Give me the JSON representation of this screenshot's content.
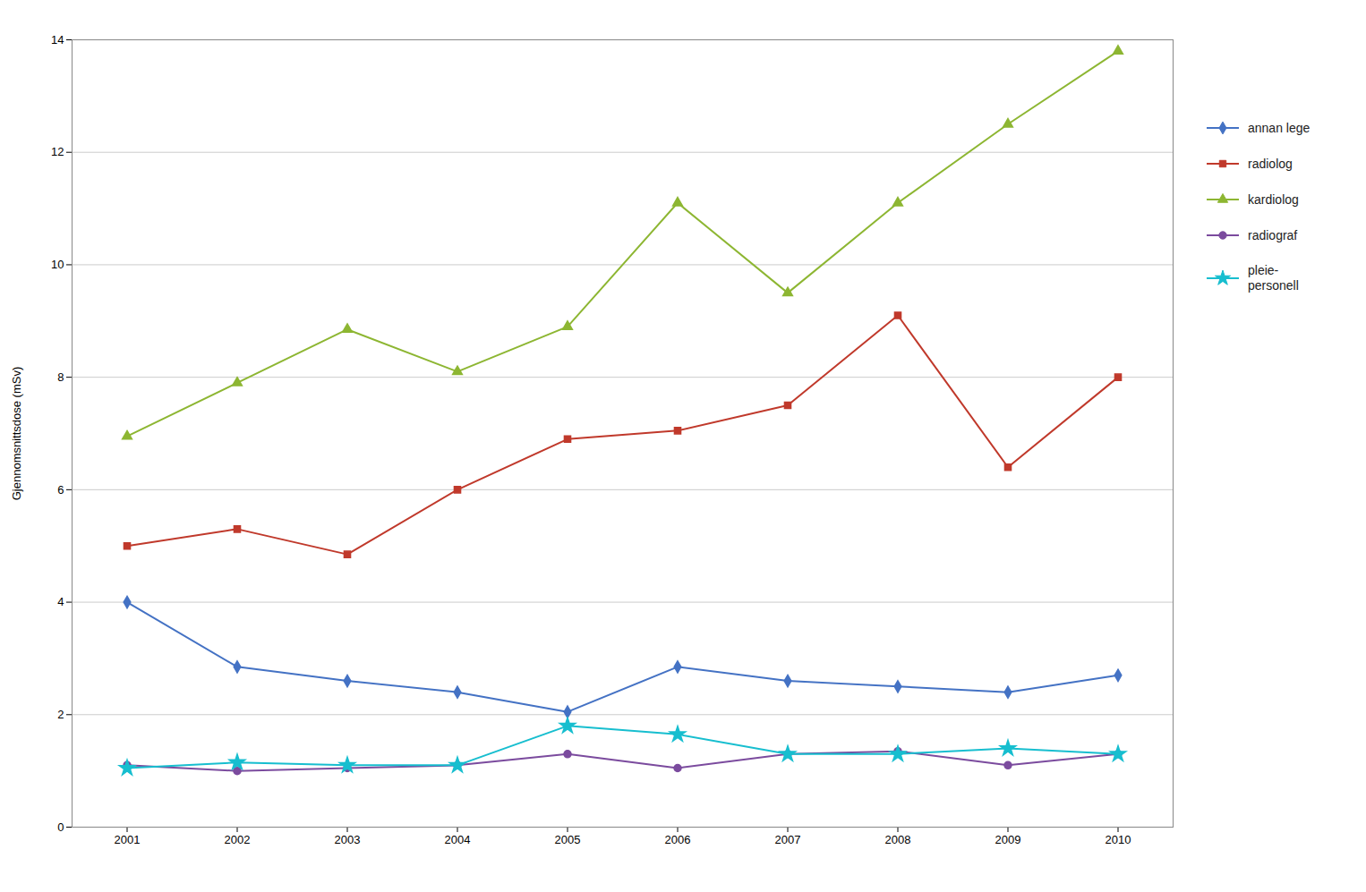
{
  "chart_data": {
    "type": "line",
    "x": [
      2001,
      2002,
      2003,
      2004,
      2005,
      2006,
      2007,
      2008,
      2009,
      2010
    ],
    "xlim": [
      2000.5,
      2010.5
    ],
    "xticks": [
      2001,
      2002,
      2003,
      2004,
      2005,
      2006,
      2007,
      2008,
      2009,
      2010
    ],
    "ylabel": "Gjennomsnittsdose (mSv)",
    "ylim": [
      0,
      14
    ],
    "yticks": [
      0,
      2,
      4,
      6,
      8,
      10,
      12,
      14
    ],
    "grid": true,
    "legend": "right",
    "series": [
      {
        "name": "annan lege",
        "color": "#4472C4",
        "marker": "diamond",
        "values": [
          4.0,
          2.85,
          2.6,
          2.4,
          2.05,
          2.85,
          2.6,
          2.5,
          2.4,
          2.7
        ]
      },
      {
        "name": "radiolog",
        "color": "#C0392B",
        "marker": "square",
        "values": [
          5.0,
          5.3,
          4.85,
          6.0,
          6.9,
          7.05,
          7.5,
          9.1,
          6.4,
          8.0
        ]
      },
      {
        "name": "kardiolog",
        "color": "#8DB632",
        "marker": "triangle",
        "values": [
          6.95,
          7.9,
          8.85,
          8.1,
          8.9,
          11.1,
          9.5,
          11.1,
          12.5,
          13.8
        ]
      },
      {
        "name": "radiograf",
        "color": "#7B4B9E",
        "marker": "circle",
        "values": [
          1.1,
          1.0,
          1.05,
          1.1,
          1.3,
          1.05,
          1.3,
          1.35,
          1.1,
          1.3
        ]
      },
      {
        "name": "pleie-\npersonell",
        "color": "#17BECF",
        "marker": "star",
        "values": [
          1.05,
          1.15,
          1.1,
          1.1,
          1.8,
          1.65,
          1.3,
          1.3,
          1.4,
          1.3
        ]
      }
    ]
  }
}
